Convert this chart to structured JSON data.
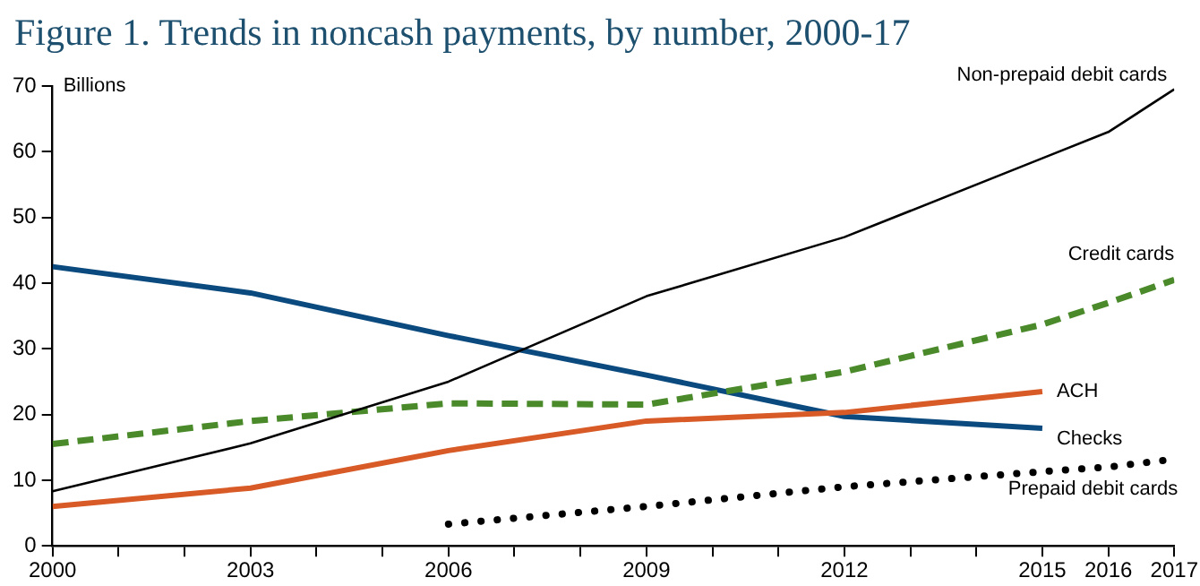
{
  "chart_data": {
    "type": "line",
    "title": "Figure 1. Trends in noncash payments, by number, 2000-17",
    "ylabel": "Billions",
    "series": [
      {
        "name": "Non-prepaid debit cards",
        "color": "#000000",
        "line_style": "solid",
        "x": [
          2000,
          2003,
          2006,
          2009,
          2012,
          2015,
          2016,
          2017
        ],
        "values": [
          8.3,
          15.6,
          25,
          38,
          47,
          59,
          63,
          69.5
        ]
      },
      {
        "name": "Credit cards",
        "color": "#4a8a2a",
        "line_style": "dashed",
        "x": [
          2000,
          2003,
          2006,
          2009,
          2012,
          2015,
          2016,
          2017
        ],
        "values": [
          15.5,
          19,
          21.7,
          21.5,
          26.5,
          33.7,
          37,
          40.5
        ]
      },
      {
        "name": "ACH",
        "color": "#d85a26",
        "line_style": "solid",
        "x": [
          2000,
          2003,
          2006,
          2009,
          2012,
          2015
        ],
        "values": [
          6,
          8.8,
          14.5,
          19,
          20.3,
          23.5
        ]
      },
      {
        "name": "Checks",
        "color": "#0b4a7e",
        "line_style": "solid",
        "x": [
          2000,
          2003,
          2006,
          2009,
          2012,
          2015
        ],
        "values": [
          42.5,
          38.5,
          32,
          26,
          19.7,
          17.9
        ]
      },
      {
        "name": "Prepaid debit cards",
        "color": "#000000",
        "line_style": "dotted",
        "x": [
          2006,
          2009,
          2012,
          2015,
          2016,
          2017
        ],
        "values": [
          3.3,
          6,
          9,
          11.3,
          12,
          13.2
        ]
      }
    ],
    "xlim": [
      2000,
      2017
    ],
    "xticks": [
      2000,
      {
        "value": 2001,
        "label": null
      },
      {
        "value": 2002,
        "label": null
      },
      2003,
      {
        "value": 2004,
        "label": null
      },
      {
        "value": 2005,
        "label": null
      },
      2006,
      {
        "value": 2007,
        "label": null
      },
      {
        "value": 2008,
        "label": null
      },
      2009,
      {
        "value": 2010,
        "label": null
      },
      {
        "value": 2011,
        "label": null
      },
      2012,
      {
        "value": 2013,
        "label": null
      },
      {
        "value": 2014,
        "label": null
      },
      2015,
      2016,
      2017
    ],
    "ylim": [
      0,
      70
    ],
    "yticks": [
      0,
      10,
      20,
      30,
      40,
      50,
      60,
      70
    ],
    "grid": false,
    "legend": false,
    "marker": "none"
  }
}
